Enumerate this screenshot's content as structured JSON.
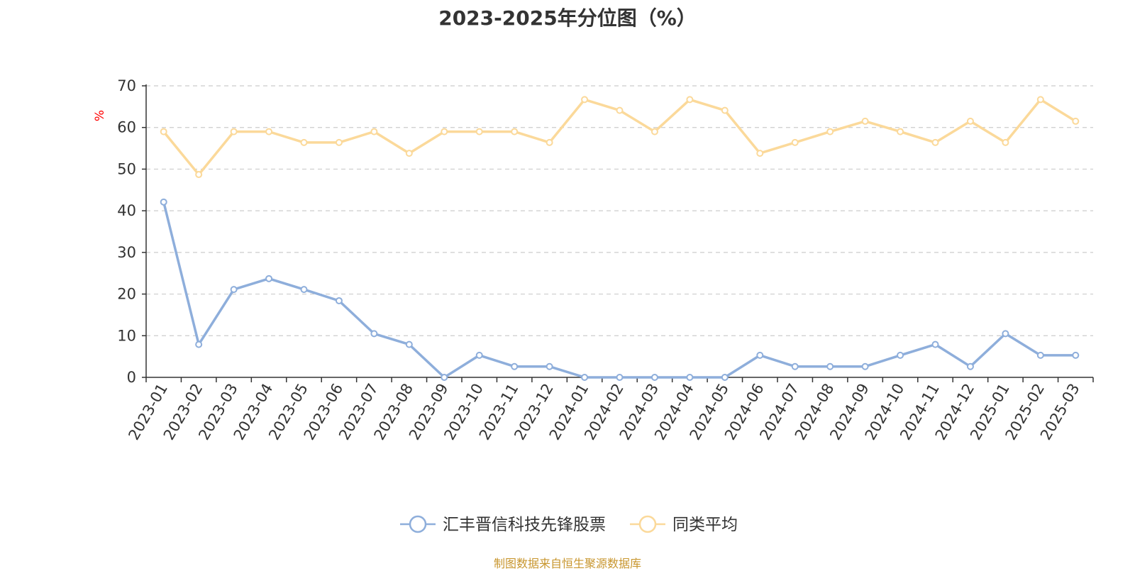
{
  "chart_data": {
    "type": "line",
    "title": "2023-2025年分位图（%）",
    "ylabel": "%",
    "xlabel": "",
    "ylim": [
      0,
      70
    ],
    "yticks": [
      0,
      10,
      20,
      30,
      40,
      50,
      60,
      70
    ],
    "grid": true,
    "legend_position": "bottom",
    "categories": [
      "2023-01",
      "2023-02",
      "2023-03",
      "2023-04",
      "2023-05",
      "2023-06",
      "2023-07",
      "2023-08",
      "2023-09",
      "2023-10",
      "2023-11",
      "2023-12",
      "2024-01",
      "2024-02",
      "2024-03",
      "2024-04",
      "2024-05",
      "2024-06",
      "2024-07",
      "2024-08",
      "2024-09",
      "2024-10",
      "2024-11",
      "2024-12",
      "2025-01",
      "2025-02",
      "2025-03"
    ],
    "series": [
      {
        "name": "汇丰晋信科技先锋股票",
        "color": "#8eaedb",
        "values": [
          42.1,
          7.9,
          21.1,
          23.7,
          21.1,
          18.4,
          10.5,
          7.9,
          0,
          5.3,
          2.6,
          2.6,
          0,
          0,
          0,
          0,
          0,
          5.3,
          2.6,
          2.6,
          2.6,
          5.3,
          7.9,
          2.6,
          10.5,
          5.3,
          5.3
        ]
      },
      {
        "name": "同类平均",
        "color": "#fbd99a",
        "values": [
          59.0,
          48.7,
          59.0,
          59.0,
          56.4,
          56.4,
          59.0,
          53.8,
          59.0,
          59.0,
          59.0,
          56.4,
          66.7,
          64.1,
          59.0,
          66.7,
          64.1,
          53.8,
          56.4,
          59.0,
          61.5,
          59.0,
          56.4,
          61.5,
          56.4,
          66.7,
          61.5
        ]
      }
    ]
  },
  "source_text": "制图数据来自恒生聚源数据库"
}
